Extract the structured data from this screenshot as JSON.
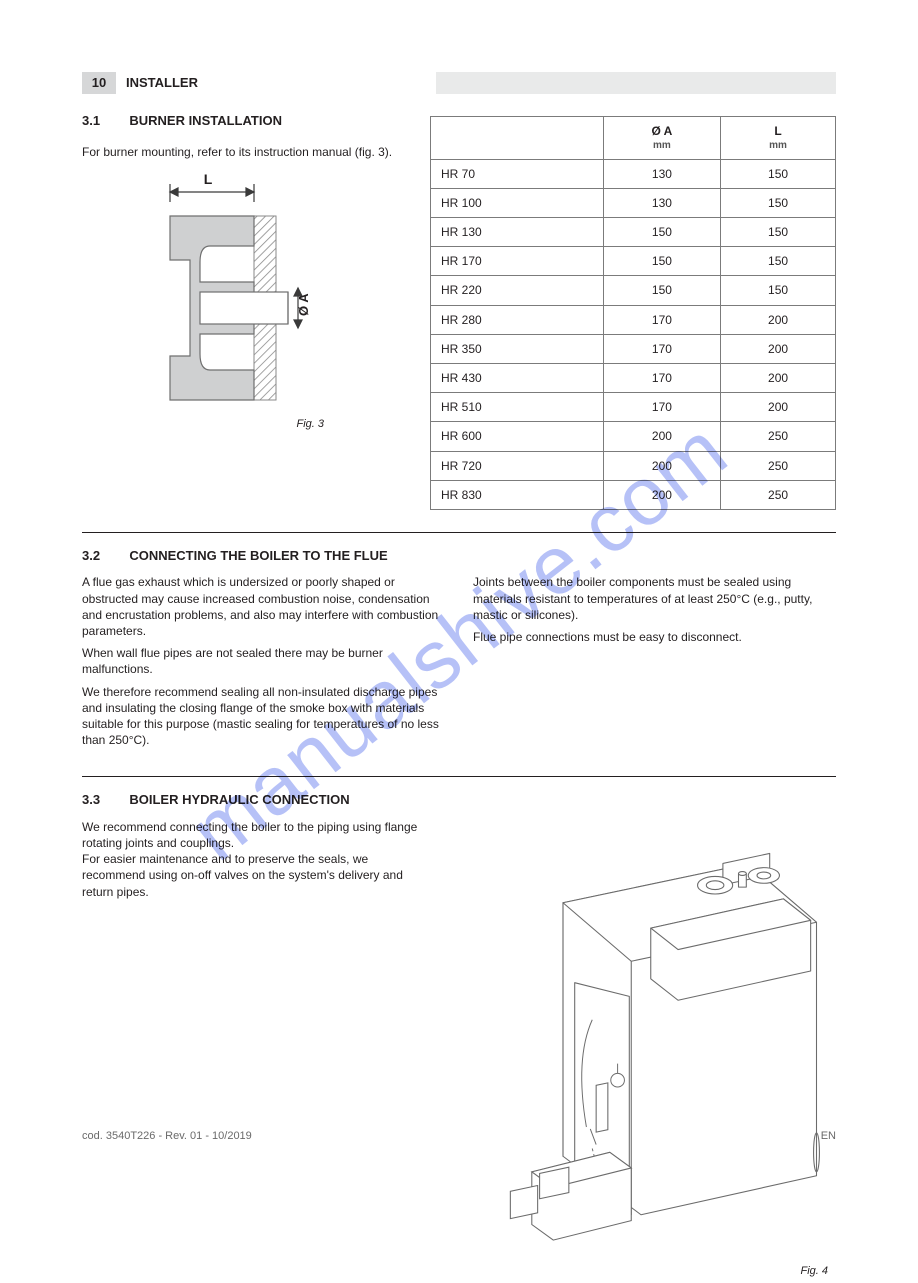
{
  "header": {
    "page_num": "10",
    "title": "INSTALLER"
  },
  "sec31": {
    "num": "3.1",
    "title": "BURNER INSTALLATION",
    "intro": "For burner mounting, refer to its instruction manual (fig. 3).",
    "fig_caption": "Fig. 3",
    "dim_L": "L",
    "dim_A": "Ø A",
    "table": {
      "headers": [
        "",
        "Ø A",
        "L"
      ],
      "subheaders": [
        "",
        "mm",
        "mm"
      ],
      "rows": [
        [
          "HR 70",
          "130",
          "150"
        ],
        [
          "HR 100",
          "130",
          "150"
        ],
        [
          "HR 130",
          "150",
          "150"
        ],
        [
          "HR 170",
          "150",
          "150"
        ],
        [
          "HR 220",
          "150",
          "150"
        ],
        [
          "HR 280",
          "170",
          "200"
        ],
        [
          "HR 350",
          "170",
          "200"
        ],
        [
          "HR 430",
          "170",
          "200"
        ],
        [
          "HR 510",
          "170",
          "200"
        ],
        [
          "HR 600",
          "200",
          "250"
        ],
        [
          "HR 720",
          "200",
          "250"
        ],
        [
          "HR 830",
          "200",
          "250"
        ]
      ]
    }
  },
  "sec32": {
    "num": "3.2",
    "title": "CONNECTING THE BOILER TO THE FLUE",
    "p1": "A flue gas exhaust which is undersized or poorly shaped or obstructed may cause increased combustion noise, condensation and encrustation problems, and also may interfere with combustion parameters.",
    "p2": "When wall flue pipes are not sealed there may be burner malfunctions.",
    "p3": "We therefore recommend sealing all non-insulated discharge pipes and insulating the closing flange of the smoke box with materials suitable for this purpose (mastic sealing for temperatures of no less than 250°C).",
    "p4": "Joints between the boiler components must be sealed using materials resistant to temperatures of at least 250°C (e.g., putty, mastic or silicones).",
    "p5": "Flue pipe connections must be easy to disconnect."
  },
  "sec33": {
    "num": "3.3",
    "title": "BOILER HYDRAULIC CONNECTION",
    "para1": "We recommend connecting the boiler to the piping using flange rotating joints and couplings.",
    "para2": "For easier maintenance and to preserve the seals, we recommend using on-off valves on the system's delivery and return pipes.",
    "fig_caption": "Fig. 4"
  },
  "footer": {
    "left": "cod. 3540T226  -  Rev. 01  -  10/2019",
    "right": "EN"
  },
  "watermark": "manualshive.com",
  "colors": {
    "hdr_box_bg": "#d6d7d8",
    "hdr_strip_bg": "#e9eaea",
    "table_border": "#7b7b7b",
    "line_gray": "#8a8a8a",
    "line_dark": "#3a3a3a",
    "fill_gray": "#cfd0d1"
  }
}
